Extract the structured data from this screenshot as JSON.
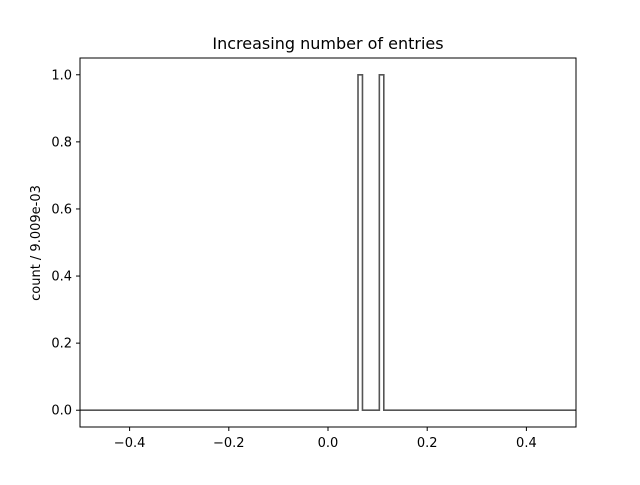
{
  "chart_data": {
    "type": "line",
    "title": "Increasing number of entries",
    "xlabel": "",
    "ylabel": "count / 9.009e-03",
    "xlim": [
      -0.5,
      0.5
    ],
    "ylim": [
      -0.05,
      1.05
    ],
    "x_ticks": [
      -0.4,
      -0.2,
      0.0,
      0.2,
      0.4
    ],
    "x_tick_labels": [
      "−0.4",
      "−0.2",
      "0.0",
      "0.2",
      "0.4"
    ],
    "y_ticks": [
      0.0,
      0.2,
      0.4,
      0.6,
      0.8,
      1.0
    ],
    "y_tick_labels": [
      "0.0",
      "0.2",
      "0.4",
      "0.6",
      "0.8",
      "1.0"
    ],
    "grid": false,
    "legend": "none",
    "series": [
      {
        "style": "step",
        "color": "#555555",
        "points": [
          [
            -0.5,
            0
          ],
          [
            0.0605,
            0
          ],
          [
            0.0605,
            1
          ],
          [
            0.0695,
            1
          ],
          [
            0.0695,
            0
          ],
          [
            0.1035,
            0
          ],
          [
            0.1035,
            1
          ],
          [
            0.1125,
            1
          ],
          [
            0.1125,
            0
          ],
          [
            0.5,
            0
          ]
        ]
      }
    ]
  }
}
